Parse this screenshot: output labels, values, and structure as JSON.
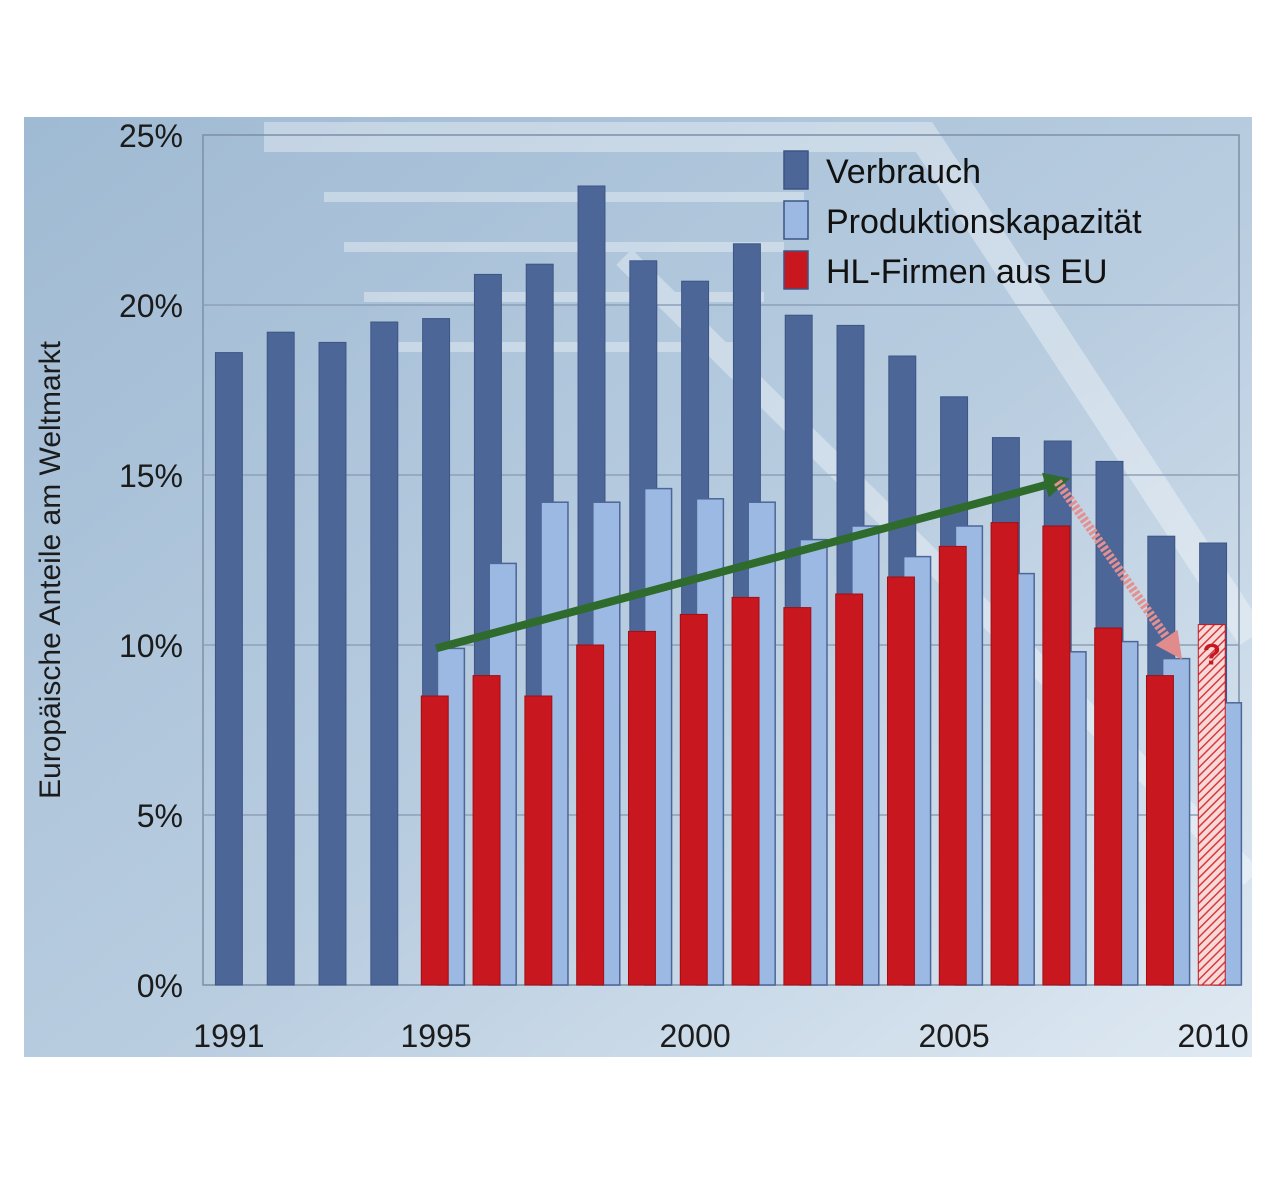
{
  "chart_data": {
    "type": "bar",
    "title": "",
    "xlabel": "",
    "ylabel": "Europäische Anteile am Weltmarkt",
    "ylim": [
      0,
      25
    ],
    "y_ticks": [
      "0%",
      "5%",
      "10%",
      "15%",
      "20%",
      "25%"
    ],
    "y_tick_values": [
      0,
      5,
      10,
      15,
      20,
      25
    ],
    "x_tick_labels": [
      {
        "label": "1991",
        "year": 1991
      },
      {
        "label": "1995",
        "year": 1995
      },
      {
        "label": "2000",
        "year": 2000
      },
      {
        "label": "2005",
        "year": 2005
      },
      {
        "label": "2010",
        "year": 2010
      }
    ],
    "categories": [
      1991,
      1992,
      1993,
      1994,
      1995,
      1996,
      1997,
      1998,
      1999,
      2000,
      2001,
      2002,
      2003,
      2004,
      2005,
      2006,
      2007,
      2008,
      2009,
      2010
    ],
    "grid": true,
    "legend_position": "top-right",
    "series": [
      {
        "name": "Verbrauch",
        "color": "#4d6698",
        "values": [
          18.6,
          19.2,
          18.9,
          19.5,
          19.6,
          20.9,
          21.2,
          23.5,
          21.3,
          20.7,
          21.8,
          19.7,
          19.4,
          18.5,
          17.3,
          16.1,
          16.0,
          15.4,
          13.2,
          13.0
        ]
      },
      {
        "name": "Produktionskapazität",
        "color": "#9bb9e2",
        "values": [
          null,
          null,
          null,
          null,
          9.9,
          12.4,
          14.2,
          14.2,
          14.6,
          14.3,
          14.2,
          13.1,
          13.5,
          12.6,
          13.5,
          12.1,
          9.8,
          10.1,
          9.6,
          8.3
        ]
      },
      {
        "name": "HL-Firmen aus EU",
        "color": "#c8171e",
        "values": [
          null,
          null,
          null,
          null,
          8.5,
          9.1,
          8.5,
          10.0,
          10.4,
          10.9,
          11.4,
          11.1,
          11.5,
          12.0,
          12.9,
          13.6,
          13.5,
          10.5,
          9.1,
          10.6
        ]
      }
    ],
    "annotations": [
      {
        "type": "trend-arrow",
        "color": "#2e6b2c",
        "from": {
          "year": 1995,
          "value": 9.9
        },
        "to": {
          "year": 2007,
          "value": 14.8
        }
      },
      {
        "type": "forecast-arrow",
        "color": "#e49090",
        "from": {
          "year": 2007,
          "value": 14.8
        },
        "to": {
          "year": 2009,
          "value": 9.9
        }
      },
      {
        "type": "uncertain-bar",
        "year": 2010,
        "series": "HL-Firmen aus EU",
        "text": "?"
      }
    ]
  }
}
